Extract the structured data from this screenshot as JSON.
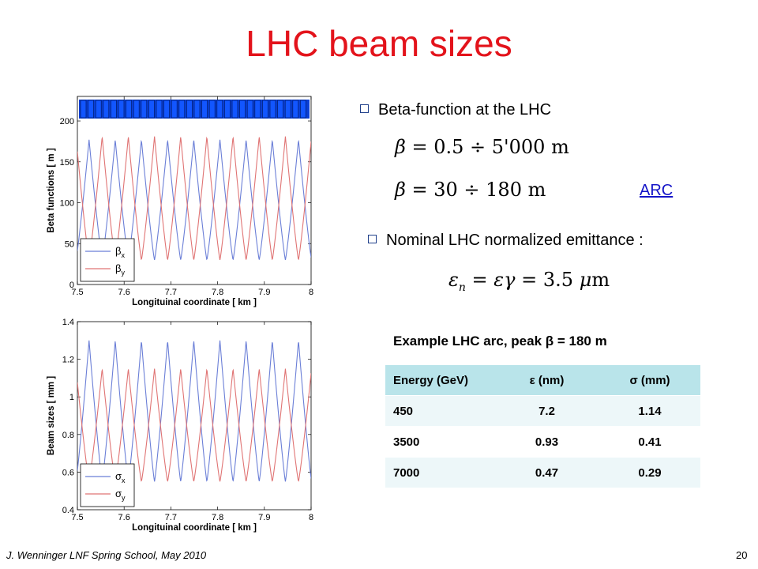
{
  "title": "LHC beam sizes",
  "bullets": {
    "beta": "Beta-function at the LHC",
    "emittance": "Nominal  LHC normalized emittance :"
  },
  "equations": {
    "beta_range_lhs": "β = 0.5 ÷ 5'000 m",
    "beta_arc": "β = 30 ÷ 180 m",
    "emittance": "εn = εγ = 3.5 μm"
  },
  "arc_link": "ARC",
  "example_label": "Example LHC arc, peak β = 180 m",
  "table": {
    "headers": [
      "Energy (GeV)",
      "ε (nm)",
      "σ (mm)"
    ],
    "rows": [
      [
        "450",
        "7.2",
        "1.14"
      ],
      [
        "3500",
        "0.93",
        "0.41"
      ],
      [
        "7000",
        "0.47",
        "0.29"
      ]
    ]
  },
  "footer": "J. Wenninger LNF Spring School, May 2010",
  "page_number": "20",
  "chart_data": [
    {
      "type": "line",
      "title": "",
      "xlabel": "Longituinal coordinate [ km ]",
      "ylabel": "Beta functions [ m ]",
      "xlim": [
        7.5,
        8.0
      ],
      "ylim": [
        0,
        230
      ],
      "xticks": [
        "7.5",
        "7.6",
        "7.7",
        "7.8",
        "7.9",
        "8"
      ],
      "yticks": [
        "0",
        "50",
        "100",
        "150",
        "200"
      ],
      "legend": {
        "placement": "bottom-left",
        "entries": [
          "βx",
          "βy"
        ]
      },
      "series": [
        {
          "name": "βx",
          "color": "#6b7fd7",
          "peak": 177,
          "min": 30,
          "peaks_x": [
            7.525,
            7.581,
            7.637,
            7.693,
            7.749,
            7.805,
            7.861,
            7.917,
            7.973
          ]
        },
        {
          "name": "βy",
          "color": "#e07474",
          "peak": 181,
          "min": 30,
          "peaks_x": [
            7.553,
            7.609,
            7.665,
            7.721,
            7.777,
            7.833,
            7.889,
            7.945,
            8.001
          ]
        }
      ],
      "magnet_lattice_band": "top"
    },
    {
      "type": "line",
      "title": "",
      "xlabel": "Longituinal coordinate [ km ]",
      "ylabel": "Beam sizes [ mm ]",
      "xlim": [
        7.5,
        8.0
      ],
      "ylim": [
        0.4,
        1.4
      ],
      "xticks": [
        "7.5",
        "7.6",
        "7.7",
        "7.8",
        "7.9",
        "8"
      ],
      "yticks": [
        "0.4",
        "0.6",
        "0.8",
        "1",
        "1.2",
        "1.4"
      ],
      "legend": {
        "placement": "bottom-left",
        "entries": [
          "σx",
          "σy"
        ]
      },
      "series": [
        {
          "name": "σx",
          "color": "#6b7fd7",
          "peak": 1.3,
          "min": 0.55,
          "peaks_x": [
            7.525,
            7.581,
            7.637,
            7.693,
            7.749,
            7.805,
            7.861,
            7.917,
            7.973
          ]
        },
        {
          "name": "σy",
          "color": "#e07474",
          "peak": 1.15,
          "min": 0.55,
          "peaks_x": [
            7.553,
            7.609,
            7.665,
            7.721,
            7.777,
            7.833,
            7.889,
            7.945,
            8.001
          ]
        }
      ]
    }
  ]
}
